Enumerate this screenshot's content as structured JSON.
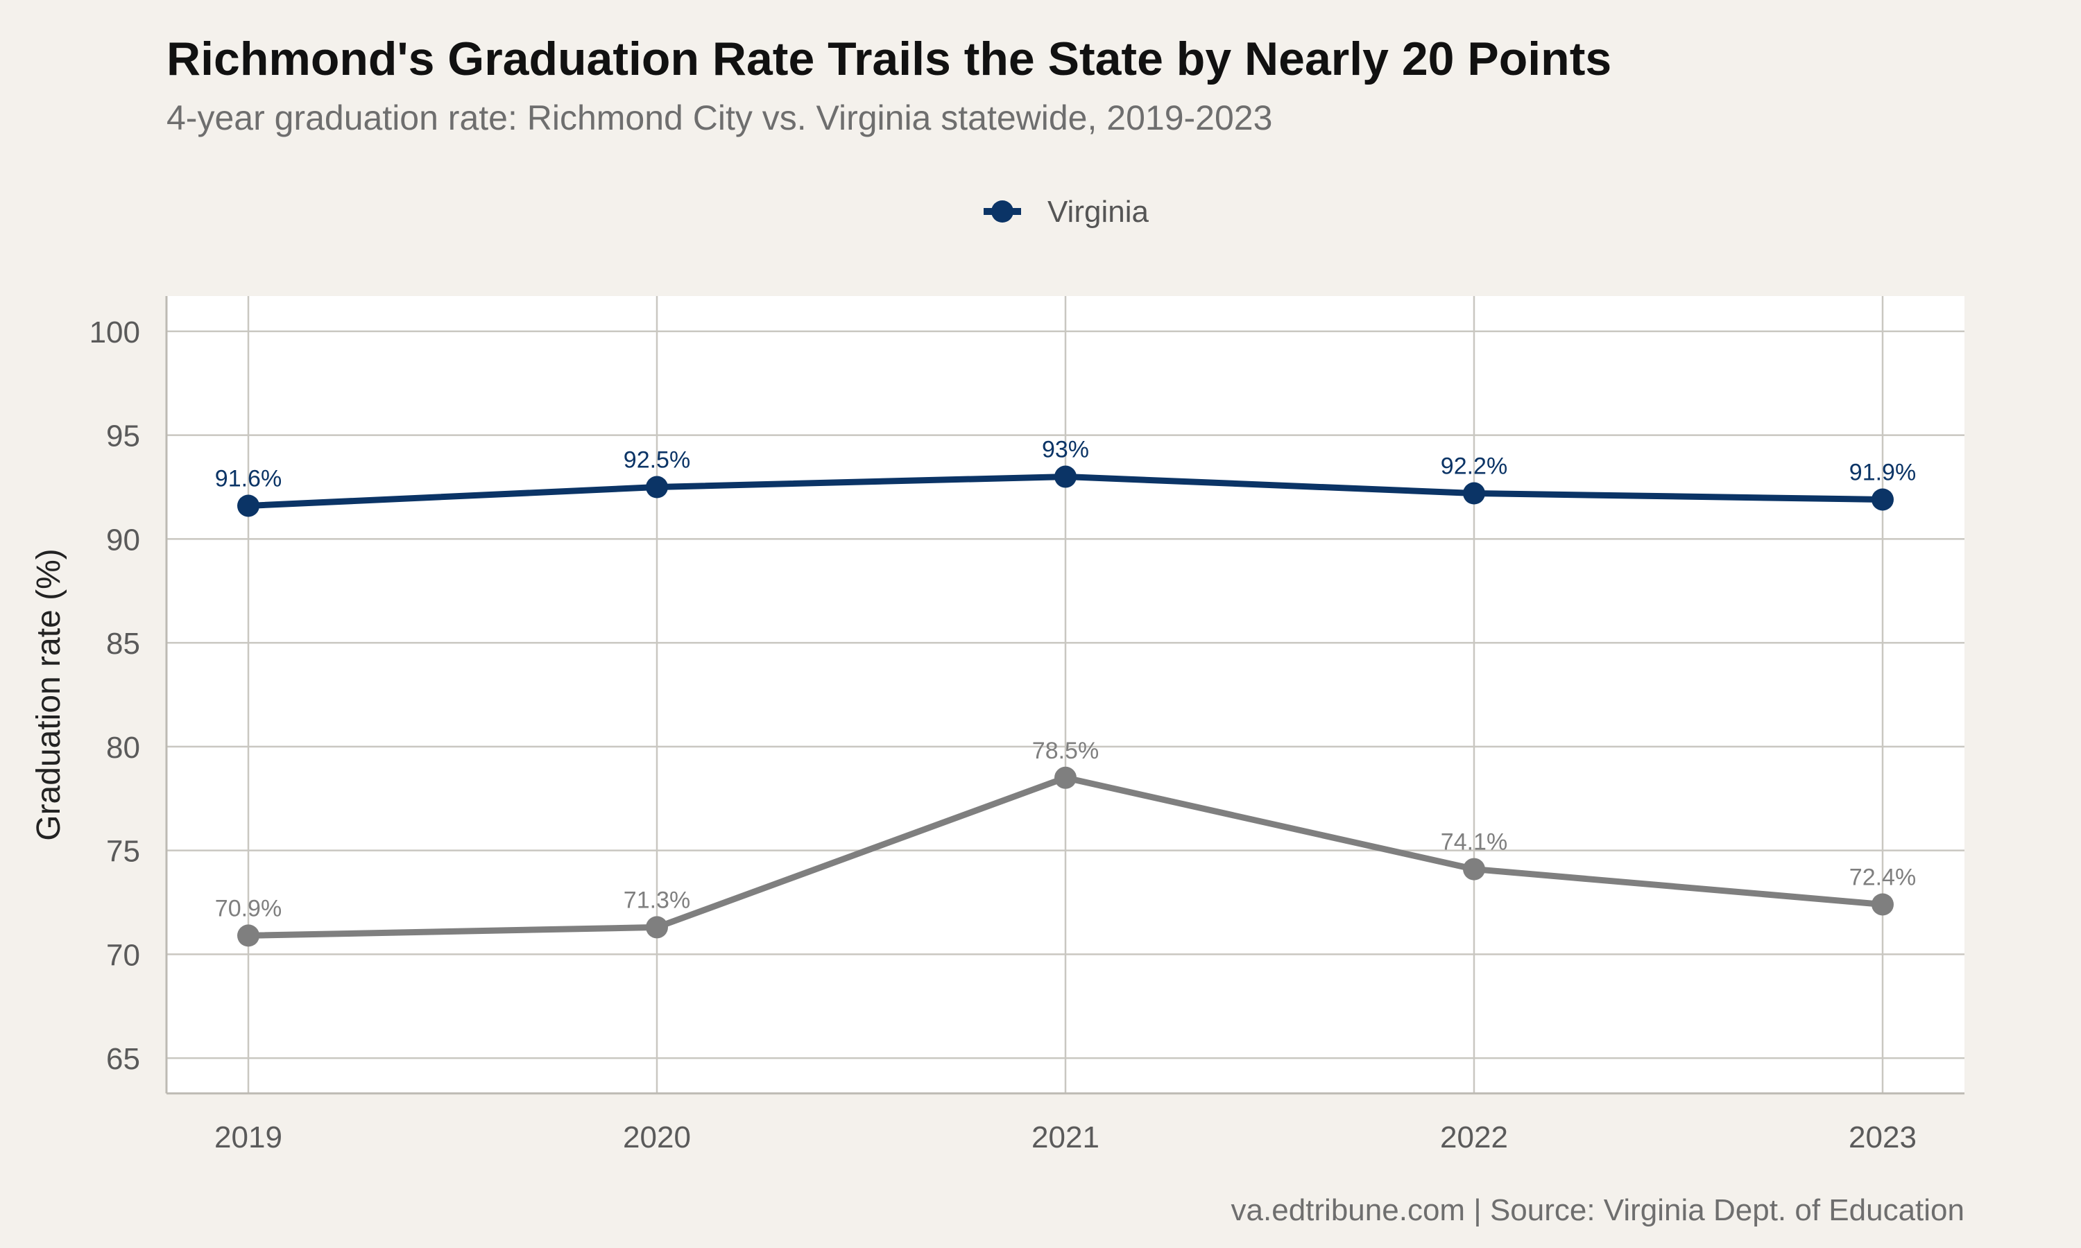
{
  "title": "Richmond's Graduation Rate Trails the State by Nearly 20 Points",
  "subtitle": "4-year graduation rate: Richmond City vs. Virginia statewide, 2019-2023",
  "caption": "va.edtribune.com | Source: Virginia Dept. of Education",
  "legend": {
    "items": [
      {
        "label": "Virginia",
        "color": "#0b3466"
      }
    ]
  },
  "colors": {
    "background": "#f4f1ec",
    "panel": "#ffffff",
    "grid": "#c9c7c1",
    "virginia": "#0b3466",
    "richmond": "#7f7f7f"
  },
  "chart_data": {
    "type": "line",
    "title": "Richmond's Graduation Rate Trails the State by Nearly 20 Points",
    "subtitle": "4-year graduation rate: Richmond City vs. Virginia statewide, 2019-2023",
    "xlabel": "",
    "ylabel": "Graduation rate (%)",
    "x": [
      "2019",
      "2020",
      "2021",
      "2022",
      "2023"
    ],
    "ylim": [
      63.3,
      101.7
    ],
    "yticks": [
      65,
      70,
      75,
      80,
      85,
      90,
      95,
      100
    ],
    "grid": true,
    "legend_position": "top",
    "series": [
      {
        "name": "Virginia",
        "color": "#0b3466",
        "values": [
          91.6,
          92.5,
          93.0,
          92.2,
          91.9
        ],
        "labels": [
          "91.6%",
          "92.5%",
          "93%",
          "92.2%",
          "91.9%"
        ]
      },
      {
        "color": "#7f7f7f",
        "values": [
          70.9,
          71.3,
          78.5,
          74.1,
          72.4
        ],
        "labels": [
          "70.9%",
          "71.3%",
          "78.5%",
          "74.1%",
          "72.4%"
        ]
      }
    ]
  }
}
